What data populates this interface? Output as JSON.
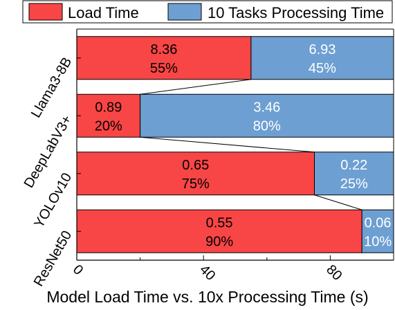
{
  "chart_data": {
    "type": "bar",
    "orientation": "horizontal",
    "stacked": true,
    "normalized": true,
    "xlabel": "Model Load Time vs. 10x Processing Time (s)",
    "ylabel": "",
    "xlim": [
      0,
      100
    ],
    "xticks": [
      "0",
      "40",
      "80"
    ],
    "xtick_values": [
      0,
      40,
      80
    ],
    "grid": false,
    "legend_position": "top",
    "categories": [
      "Llama3-8B",
      "DeepLabV3+",
      "YOLOv10",
      "ResNet50"
    ],
    "series": [
      {
        "name": "Load Time",
        "color": "#f84545",
        "text_color": "#000000",
        "values": [
          8.36,
          0.89,
          0.65,
          0.55
        ],
        "value_labels": [
          "8.36",
          "0.89",
          "0.65",
          "0.55"
        ],
        "percent": [
          55,
          20,
          75,
          90
        ],
        "percent_labels": [
          "55%",
          "20%",
          "75%",
          "90%"
        ]
      },
      {
        "name": "10 Tasks Processing Time",
        "color": "#6d9fd2",
        "text_color": "#ffffff",
        "values": [
          6.93,
          3.46,
          0.22,
          0.06
        ],
        "value_labels": [
          "6.93",
          "3.46",
          "0.22",
          "0.06"
        ],
        "percent": [
          45,
          80,
          25,
          10
        ],
        "percent_labels": [
          "45%",
          "80%",
          "25%",
          "10%"
        ]
      }
    ]
  }
}
